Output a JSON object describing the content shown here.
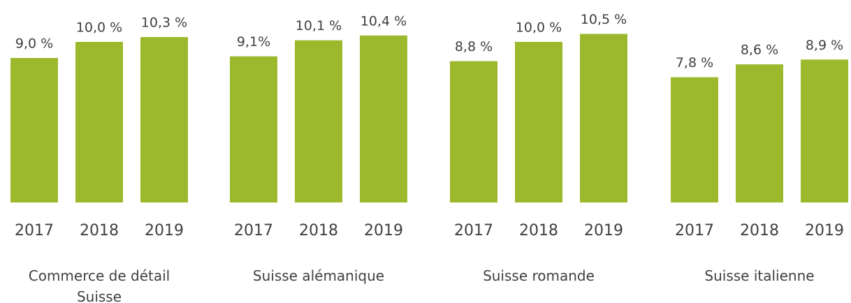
{
  "chart_data": [
    {
      "type": "bar",
      "xlabel": "Commerce de détail Suisse",
      "categories": [
        "2017",
        "2018",
        "2019"
      ],
      "values": [
        9.0,
        10.0,
        10.3
      ],
      "value_labels": [
        "9,0 %",
        "10,0 %",
        "10,3 %"
      ],
      "color": "#9cb92d"
    },
    {
      "type": "bar",
      "xlabel": "Suisse alémanique",
      "categories": [
        "2017",
        "2018",
        "2019"
      ],
      "values": [
        9.1,
        10.1,
        10.4
      ],
      "value_labels": [
        "9,1%",
        "10,1 %",
        "10,4 %"
      ],
      "color": "#9cb92d"
    },
    {
      "type": "bar",
      "xlabel": "Suisse romande",
      "categories": [
        "2017",
        "2018",
        "2019"
      ],
      "values": [
        8.8,
        10.0,
        10.5
      ],
      "value_labels": [
        "8,8 %",
        "10,0 %",
        "10,5 %"
      ],
      "color": "#9cb92d"
    },
    {
      "type": "bar",
      "xlabel": "Suisse italienne",
      "categories": [
        "2017",
        "2018",
        "2019"
      ],
      "values": [
        7.8,
        8.6,
        8.9
      ],
      "value_labels": [
        "7,8 %",
        "8,6 %",
        "8,9 %"
      ],
      "color": "#9cb92d"
    }
  ]
}
